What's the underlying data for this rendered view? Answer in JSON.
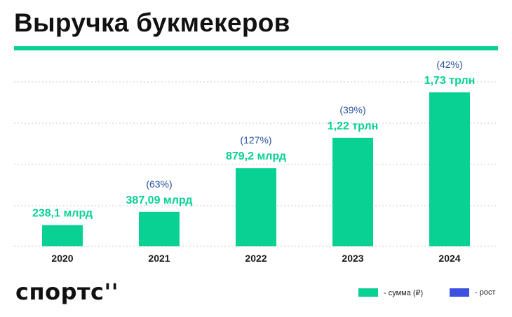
{
  "title": "Выручка букмекеров",
  "logo": "спортс''",
  "colors": {
    "accent": "#08d193",
    "bar": "#08d193",
    "growth_text": "#28519f",
    "grid": "#c9c9c9"
  },
  "legend": {
    "sum_label": "- сумма (₽)",
    "growth_label": "- рост",
    "sum_color": "#08d193",
    "growth_color": "#3d50e0"
  },
  "chart_data": {
    "type": "bar",
    "title": "Выручка букмекеров",
    "xlabel": "",
    "ylabel": "",
    "grid": true,
    "ylim": [
      0,
      2000
    ],
    "categories": [
      "2020",
      "2021",
      "2022",
      "2023",
      "2024"
    ],
    "values": [
      238.1,
      387.09,
      879.2,
      1220,
      1730
    ],
    "units": "млрд ₽",
    "value_labels": [
      "238,1 млрд",
      "387,09 млрд",
      "879,2 млрд",
      "1,22 трлн",
      "1,73 трлн"
    ],
    "growth_labels": [
      "",
      "(63%)",
      "(127%)",
      "(39%)",
      "(42%)"
    ]
  }
}
